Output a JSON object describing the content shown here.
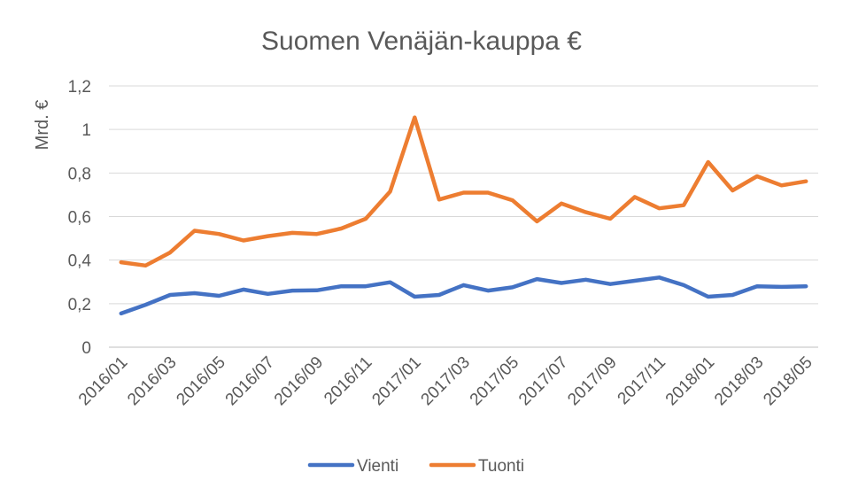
{
  "chart_data": {
    "type": "line",
    "title": "Suomen Venäjän-kauppa €",
    "ylabel": "Mrd. €",
    "xlabel": "",
    "ylim": [
      0,
      1.2
    ],
    "yticks": [
      "0",
      "0,2",
      "0,4",
      "0,6",
      "0,8",
      "1",
      "1,2"
    ],
    "ytick_values": [
      0,
      0.2,
      0.4,
      0.6,
      0.8,
      1.0,
      1.2
    ],
    "grid": true,
    "legend_position": "bottom",
    "x": [
      "2016/01",
      "2016/02",
      "2016/03",
      "2016/04",
      "2016/05",
      "2016/06",
      "2016/07",
      "2016/08",
      "2016/09",
      "2016/10",
      "2016/11",
      "2016/12",
      "2017/01",
      "2017/02",
      "2017/03",
      "2017/04",
      "2017/05",
      "2017/06",
      "2017/07",
      "2017/08",
      "2017/09",
      "2017/10",
      "2017/11",
      "2017/12",
      "2018/01",
      "2018/02",
      "2018/03",
      "2018/04",
      "2018/05"
    ],
    "xtick_labels": [
      "2016/01",
      "2016/03",
      "2016/05",
      "2016/07",
      "2016/09",
      "2016/11",
      "2017/01",
      "2017/03",
      "2017/05",
      "2017/07",
      "2017/09",
      "2017/11",
      "2018/01",
      "2018/03",
      "2018/05"
    ],
    "series": [
      {
        "name": "Vienti",
        "color": "#4472C4",
        "values": [
          0.155,
          0.195,
          0.24,
          0.248,
          0.236,
          0.265,
          0.245,
          0.26,
          0.261,
          0.28,
          0.28,
          0.298,
          0.232,
          0.24,
          0.285,
          0.26,
          0.275,
          0.313,
          0.295,
          0.31,
          0.29,
          0.305,
          0.32,
          0.285,
          0.232,
          0.24,
          0.28,
          0.277,
          0.28
        ]
      },
      {
        "name": "Tuonti",
        "color": "#ED7D31",
        "values": [
          0.39,
          0.375,
          0.435,
          0.535,
          0.52,
          0.49,
          0.51,
          0.525,
          0.52,
          0.545,
          0.59,
          0.715,
          1.055,
          0.678,
          0.71,
          0.71,
          0.675,
          0.578,
          0.66,
          0.62,
          0.59,
          0.69,
          0.638,
          0.652,
          0.85,
          0.72,
          0.785,
          0.743,
          0.762
        ]
      }
    ]
  }
}
